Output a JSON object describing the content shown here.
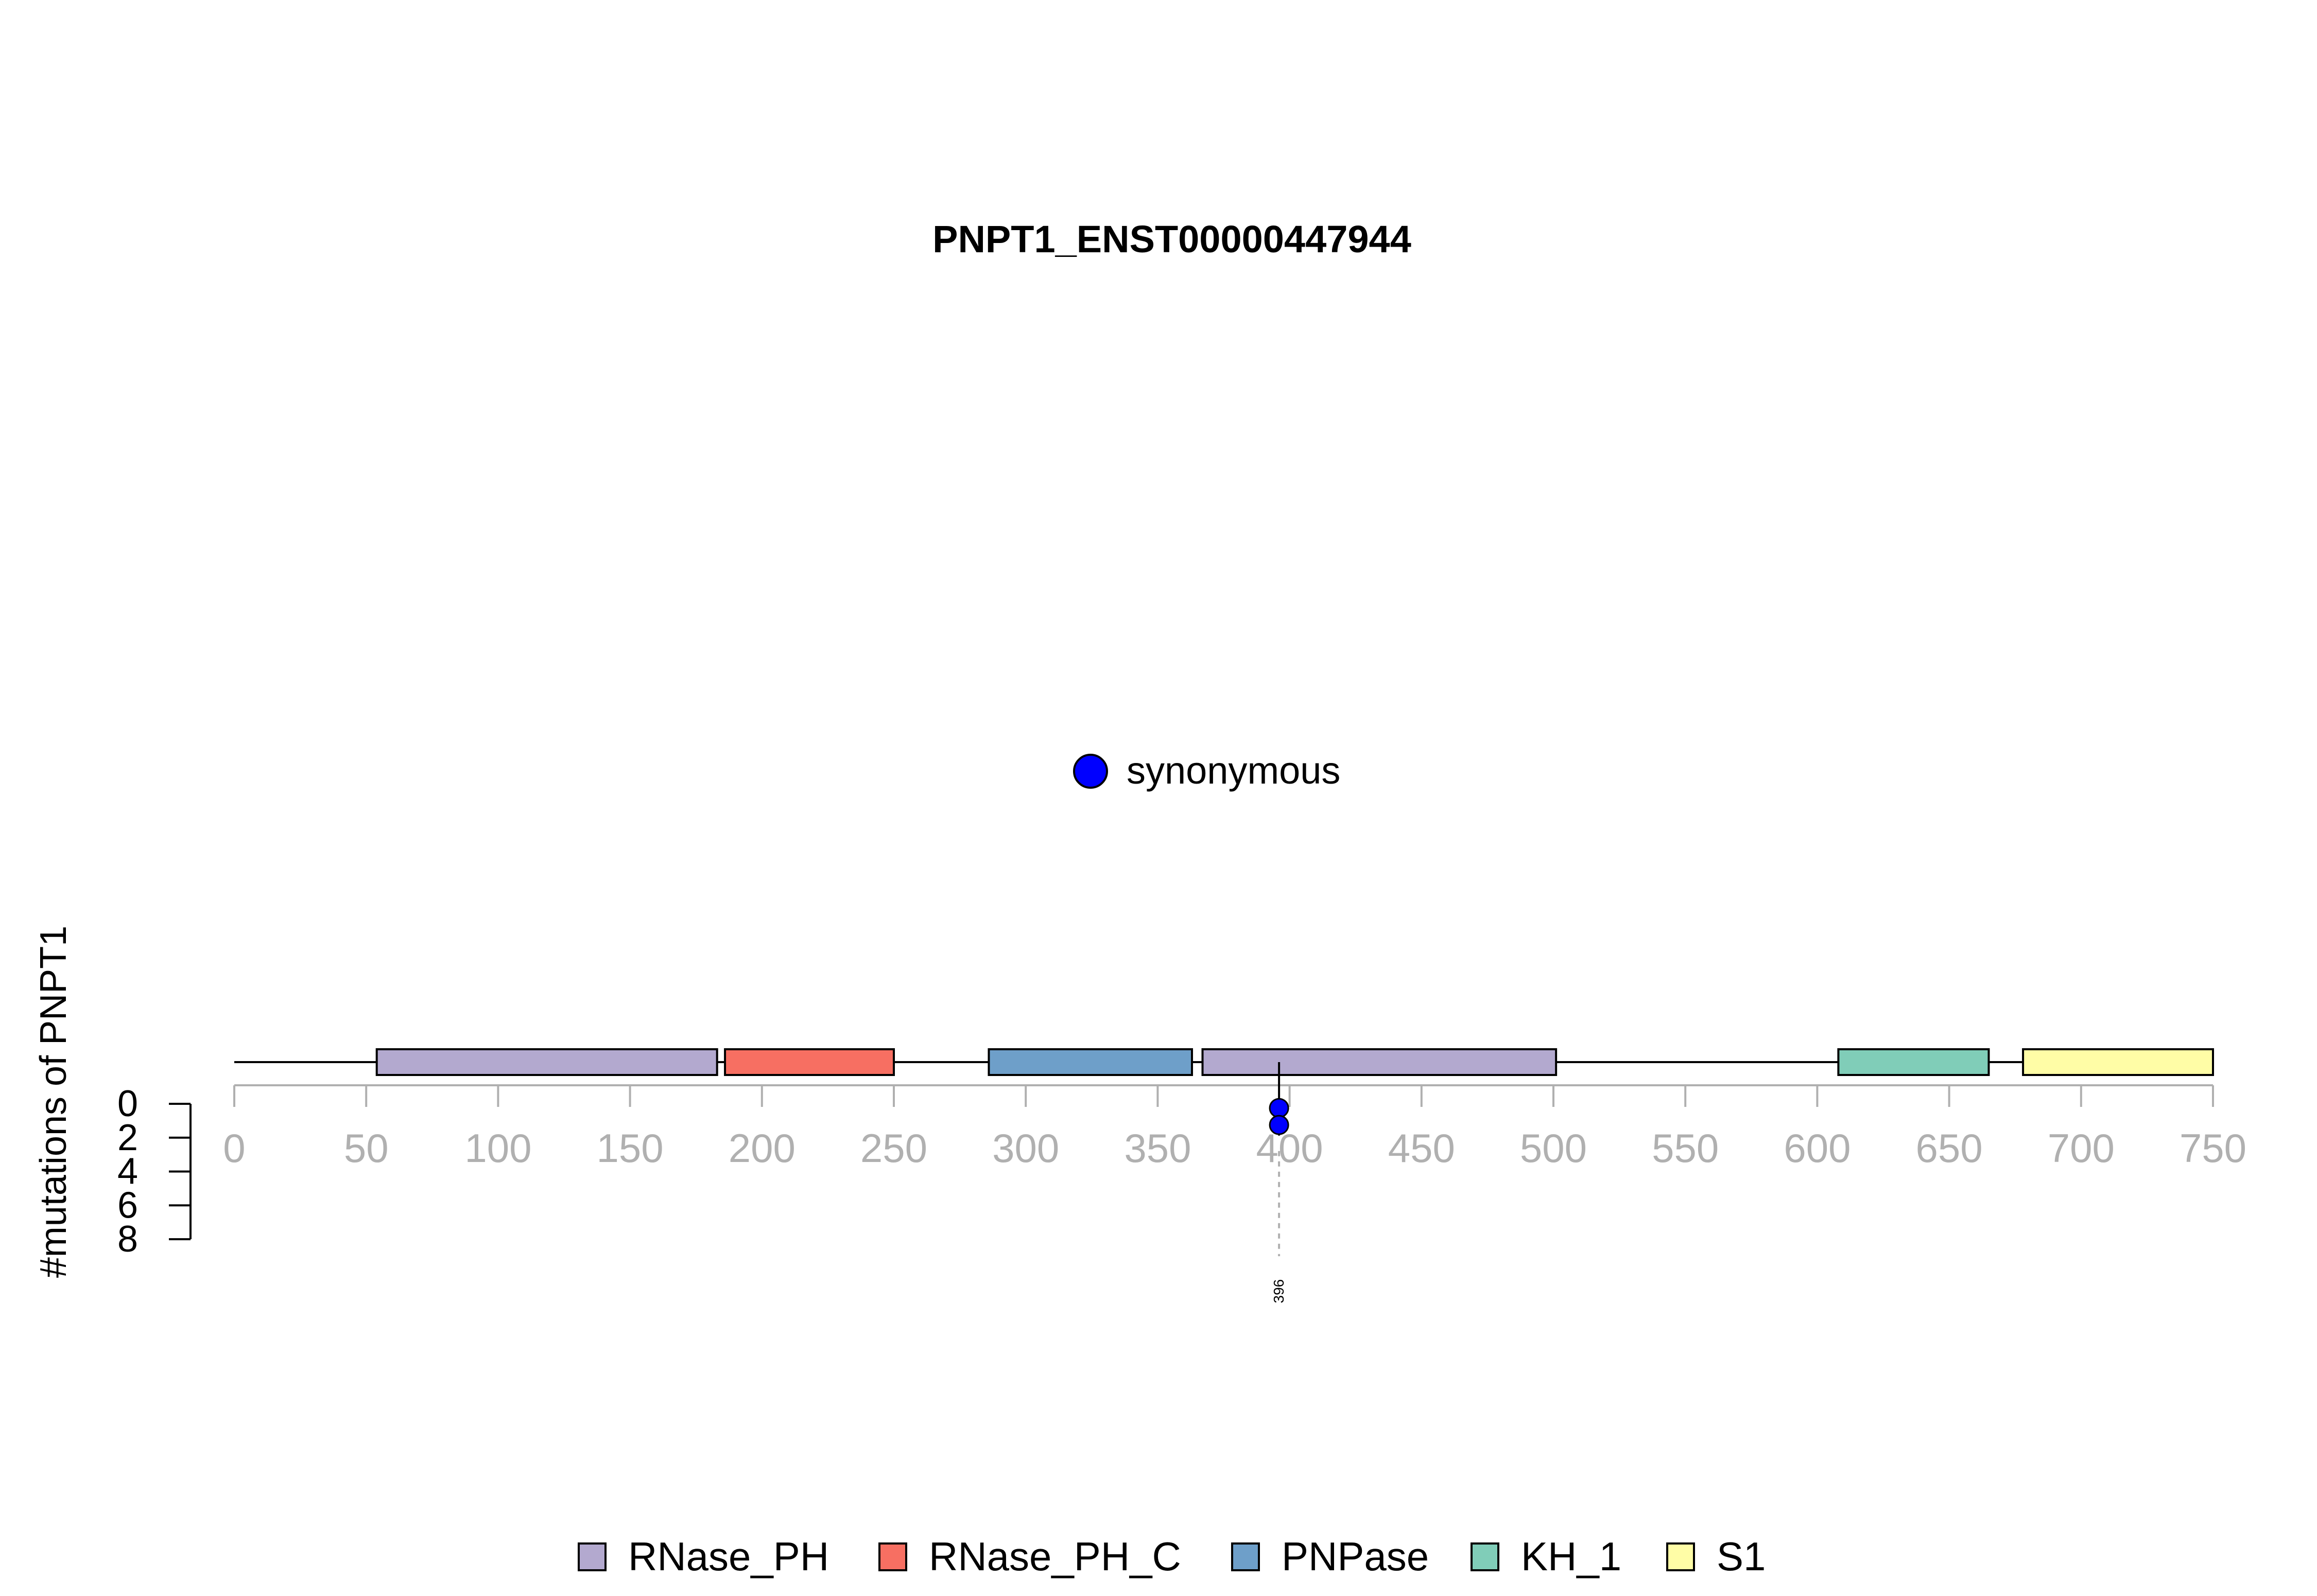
{
  "chart_data": {
    "type": "lollipop",
    "title": "PNPT1_ENST00000447944",
    "ylabel": "#mutations of PNPT1",
    "x_ticks": [
      0,
      50,
      100,
      150,
      200,
      250,
      300,
      350,
      400,
      450,
      500,
      550,
      600,
      650,
      700,
      750
    ],
    "y_ticks": [
      0,
      2,
      4,
      6,
      8
    ],
    "xlim": [
      0,
      750
    ],
    "ylim": [
      0,
      8
    ],
    "protein_length": 750,
    "domains": [
      {
        "name": "RNase_PH",
        "start": 54,
        "end": 183,
        "color": "#B3A9CF"
      },
      {
        "name": "RNase_PH_C",
        "start": 186,
        "end": 250,
        "color": "#F76F62"
      },
      {
        "name": "PNPase",
        "start": 286,
        "end": 363,
        "color": "#6E9FC9"
      },
      {
        "name": "RNase_PH",
        "start": 367,
        "end": 501,
        "color": "#B3A9CF"
      },
      {
        "name": "KH_1",
        "start": 608,
        "end": 665,
        "color": "#80CDB8"
      },
      {
        "name": "S1",
        "start": 678,
        "end": 750,
        "color": "#FFFDA6"
      }
    ],
    "mutations": [
      {
        "position": 396,
        "label": "396",
        "type": "synonymous",
        "count": 2
      }
    ],
    "mutation_legend": [
      {
        "label": "synonymous",
        "color": "#0000FF"
      }
    ],
    "domain_legend": [
      {
        "label": "RNase_PH",
        "color": "#B3A9CF"
      },
      {
        "label": "RNase_PH_C",
        "color": "#F76F62"
      },
      {
        "label": "PNPase",
        "color": "#6E9FC9"
      },
      {
        "label": "KH_1",
        "color": "#80CDB8"
      },
      {
        "label": "S1",
        "color": "#FFFDA6"
      }
    ],
    "colors": {
      "axis_gray": "#B0B0B0",
      "backbone": "#000000"
    }
  }
}
